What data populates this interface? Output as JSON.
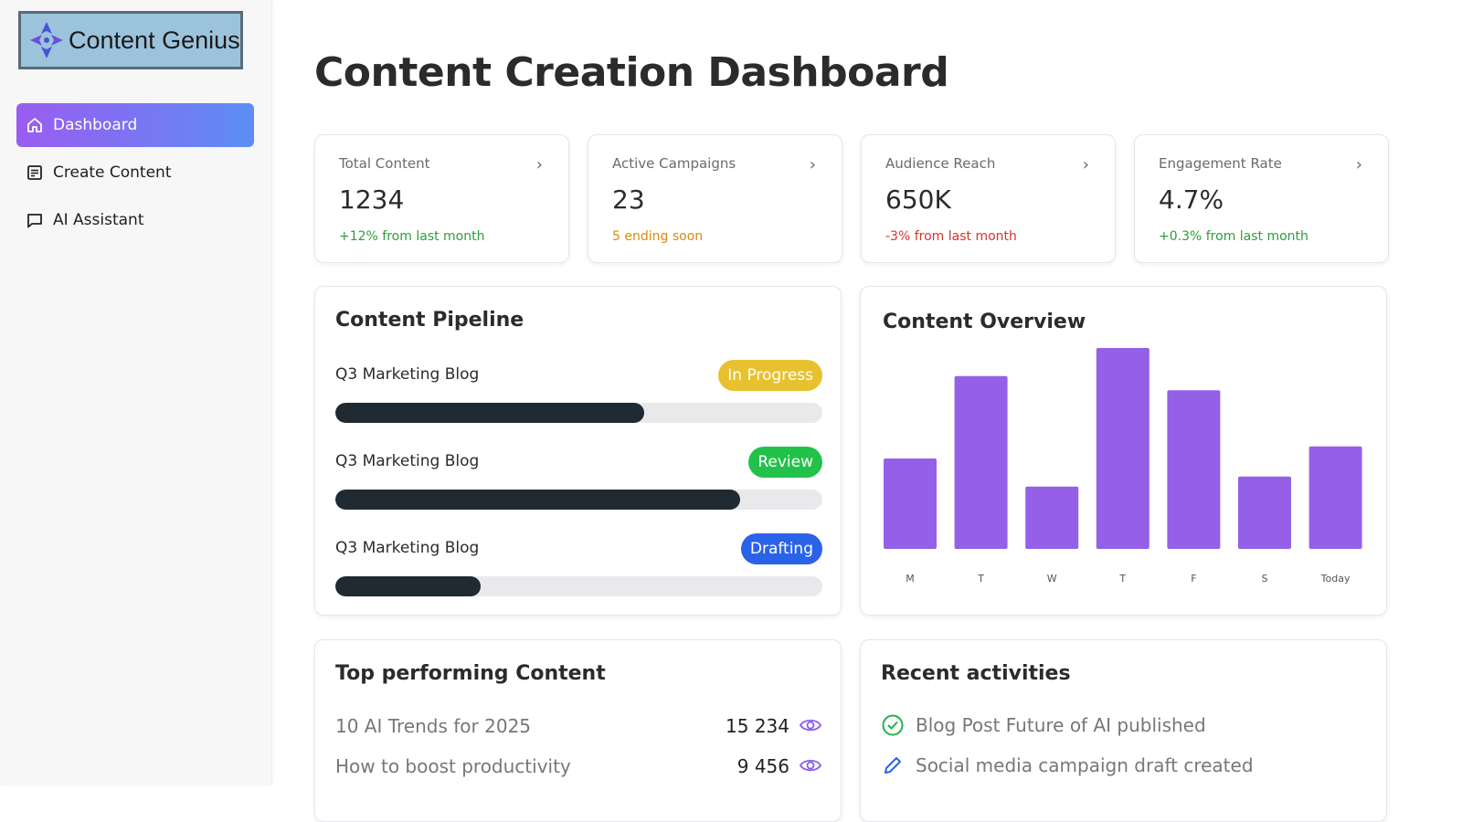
{
  "app": {
    "name": "Content Genius"
  },
  "sidebar": {
    "items": [
      {
        "label": "Dashboard",
        "icon": "home-icon",
        "active": true
      },
      {
        "label": "Create Content",
        "icon": "document-icon",
        "active": false
      },
      {
        "label": "AI Assistant",
        "icon": "chat-icon",
        "active": false
      }
    ]
  },
  "page": {
    "title": "Content Creation Dashboard"
  },
  "stats": [
    {
      "label": "Total Content",
      "value": "1234",
      "note": "+12% from last month",
      "note_color": "#2e9e3a"
    },
    {
      "label": "Active Campaigns",
      "value": "23",
      "note": "5 ending soon",
      "note_color": "#d98a0b"
    },
    {
      "label": "Audience Reach",
      "value": "650K",
      "note": "-3% from last month",
      "note_color": "#d9322b"
    },
    {
      "label": "Engagement Rate",
      "value": "4.7%",
      "note": "+0.3% from last month",
      "note_color": "#2e9e3a"
    }
  ],
  "pipeline": {
    "title": "Content Pipeline",
    "items": [
      {
        "name": "Q3 Marketing Blog",
        "status": "In Progress",
        "status_color": "#e8c12f",
        "progress": 0.635
      },
      {
        "name": "Q3 Marketing Blog",
        "status": "Review",
        "status_color": "#22c24a",
        "progress": 0.832
      },
      {
        "name": "Q3 Marketing Blog",
        "status": "Drafting",
        "status_color": "#2a62e8",
        "progress": 0.298
      }
    ]
  },
  "overview": {
    "title": "Content Overview"
  },
  "chart_data": {
    "type": "bar",
    "categories": [
      "M",
      "T",
      "W",
      "T",
      "F",
      "S",
      "Today"
    ],
    "values": [
      45,
      86,
      31,
      100,
      79,
      36,
      51
    ],
    "ylim": [
      0,
      100
    ],
    "bar_color": "#9560e8",
    "grid": false
  },
  "top_content": {
    "title": "Top performing Content",
    "rows": [
      {
        "title": "10 AI Trends for 2025",
        "views": "15 234"
      },
      {
        "title": "How to boost productivity",
        "views": "9 456"
      }
    ]
  },
  "recent": {
    "title": "Recent activities",
    "rows": [
      {
        "text": "Blog Post  Future of AI published",
        "icon": "check-circle-icon"
      },
      {
        "text": "Social media campaign draft created",
        "icon": "pencil-icon"
      }
    ]
  },
  "colors": {
    "accent_purple": "#9a5cf0",
    "accent_blue": "#5b8ef5",
    "eye_purple": "#8a5cf0"
  }
}
